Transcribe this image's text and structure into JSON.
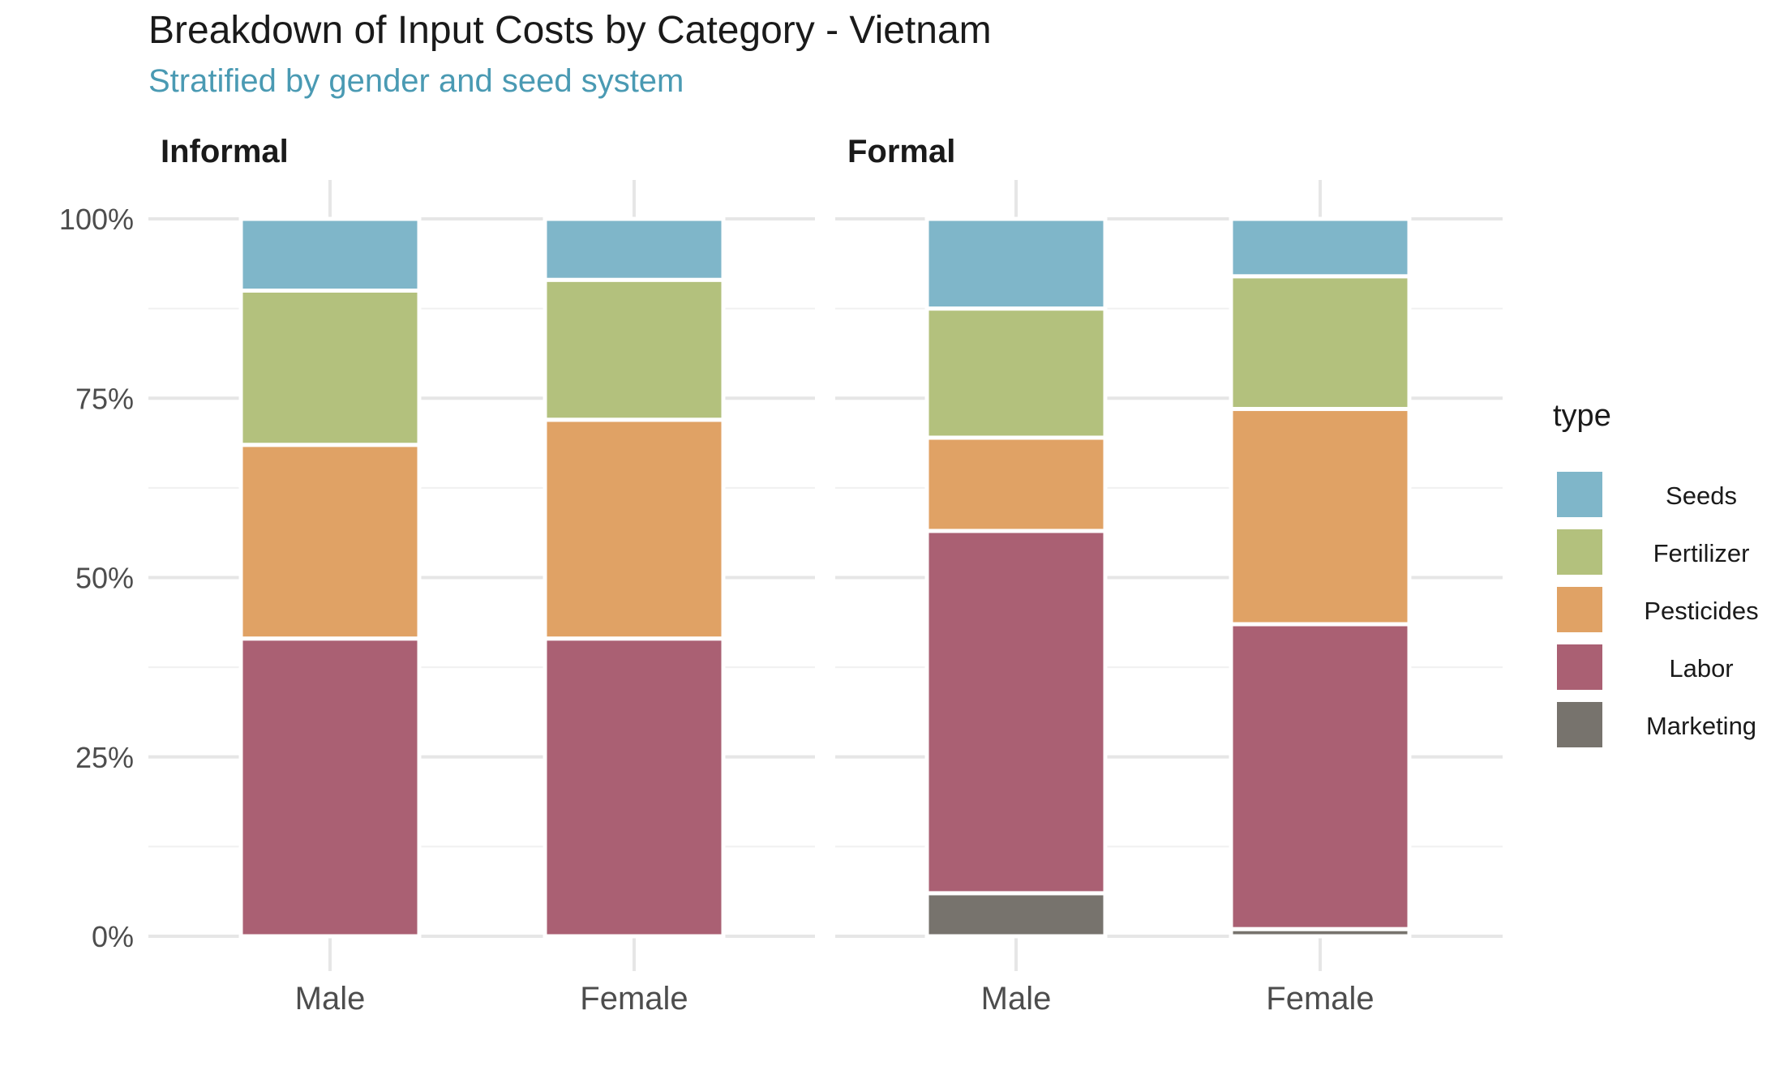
{
  "title": "Breakdown of Input Costs by Category - Vietnam",
  "subtitle": "Stratified by gender and seed system",
  "legend_title": "type",
  "colors": {
    "Seeds": "#7fb6c9",
    "Fertilizer": "#b3c17d",
    "Pesticides": "#e0a265",
    "Labor": "#aa6073",
    "Marketing": "#77736d"
  },
  "chart_data": {
    "type": "bar",
    "stacked": true,
    "title": "Breakdown of Input Costs by Category - Vietnam",
    "subtitle": "Stratified by gender and seed system",
    "ylim": [
      0,
      100
    ],
    "y_ticks": [
      "0%",
      "25%",
      "50%",
      "75%",
      "100%"
    ],
    "legend_title": "type",
    "legend_position": "right",
    "grid": true,
    "categories": [
      "Male",
      "Female"
    ],
    "facets": [
      {
        "name": "Informal",
        "series": [
          {
            "name": "Marketing",
            "values": [
              0,
              0
            ]
          },
          {
            "name": "Labor",
            "values": [
              41.5,
              41.5
            ]
          },
          {
            "name": "Pesticides",
            "values": [
              27.0,
              30.5
            ]
          },
          {
            "name": "Fertilizer",
            "values": [
              21.5,
              19.5
            ]
          },
          {
            "name": "Seeds",
            "values": [
              10.0,
              8.5
            ]
          }
        ]
      },
      {
        "name": "Formal",
        "series": [
          {
            "name": "Marketing",
            "values": [
              6.0,
              1.0
            ]
          },
          {
            "name": "Labor",
            "values": [
              50.5,
              42.5
            ]
          },
          {
            "name": "Pesticides",
            "values": [
              13.0,
              30.0
            ]
          },
          {
            "name": "Fertilizer",
            "values": [
              18.0,
              18.5
            ]
          },
          {
            "name": "Seeds",
            "values": [
              12.5,
              8.0
            ]
          }
        ]
      }
    ],
    "legend_order": [
      "Seeds",
      "Fertilizer",
      "Pesticides",
      "Labor",
      "Marketing"
    ]
  }
}
